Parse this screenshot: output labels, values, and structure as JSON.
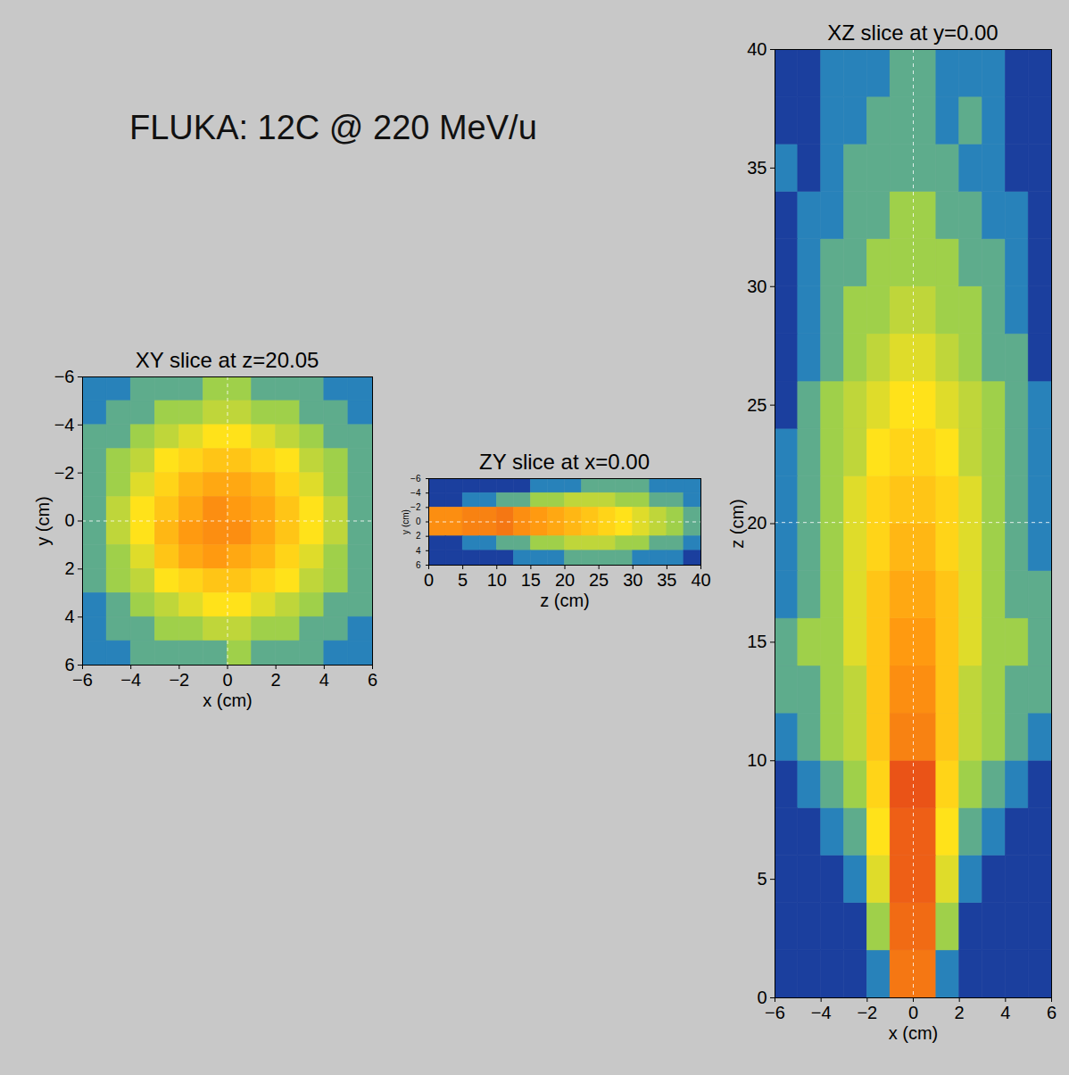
{
  "title": "FLUKA: 12C @ 220 MeV/u",
  "chart_data": [
    {
      "type": "heatmap",
      "title": "XY slice at z=20.05",
      "x_label": "x (cm)",
      "y_label": "y (cm)",
      "xlim": [
        -6,
        6
      ],
      "ylim": [
        6,
        -6
      ],
      "xticks": [
        -6,
        -4,
        -2,
        0,
        2,
        4,
        6
      ],
      "yticks": [
        -6,
        -4,
        -2,
        0,
        2,
        4,
        6
      ],
      "x_edges": [
        -6,
        -5,
        -4,
        -3,
        -2,
        -1,
        0,
        1,
        2,
        3,
        4,
        5,
        6
      ],
      "y_edges": [
        -6,
        -5,
        -4,
        -3,
        -2,
        -1,
        0,
        1,
        2,
        3,
        4,
        5,
        6
      ],
      "zlim": [
        0,
        1
      ],
      "crosshair": {
        "x": 0,
        "y": 0
      },
      "cells": [
        [
          0.05,
          0.05,
          0.1,
          0.1,
          0.1,
          0.15,
          0.15,
          0.1,
          0.1,
          0.1,
          0.05,
          0.05
        ],
        [
          0.05,
          0.1,
          0.1,
          0.15,
          0.15,
          0.2,
          0.2,
          0.15,
          0.15,
          0.1,
          0.1,
          0.05
        ],
        [
          0.1,
          0.1,
          0.15,
          0.2,
          0.25,
          0.3,
          0.3,
          0.25,
          0.2,
          0.15,
          0.1,
          0.1
        ],
        [
          0.1,
          0.15,
          0.2,
          0.3,
          0.35,
          0.4,
          0.4,
          0.35,
          0.3,
          0.2,
          0.15,
          0.1
        ],
        [
          0.1,
          0.15,
          0.25,
          0.35,
          0.45,
          0.5,
          0.5,
          0.45,
          0.35,
          0.25,
          0.15,
          0.1
        ],
        [
          0.1,
          0.2,
          0.3,
          0.4,
          0.5,
          0.6,
          0.55,
          0.5,
          0.4,
          0.3,
          0.2,
          0.1
        ],
        [
          0.1,
          0.2,
          0.3,
          0.45,
          0.55,
          0.6,
          0.6,
          0.5,
          0.4,
          0.3,
          0.2,
          0.1
        ],
        [
          0.1,
          0.15,
          0.25,
          0.4,
          0.5,
          0.55,
          0.5,
          0.45,
          0.35,
          0.25,
          0.15,
          0.1
        ],
        [
          0.1,
          0.15,
          0.2,
          0.3,
          0.35,
          0.4,
          0.4,
          0.35,
          0.3,
          0.2,
          0.15,
          0.1
        ],
        [
          0.05,
          0.1,
          0.15,
          0.2,
          0.25,
          0.3,
          0.3,
          0.25,
          0.2,
          0.15,
          0.1,
          0.1
        ],
        [
          0.05,
          0.1,
          0.1,
          0.15,
          0.15,
          0.2,
          0.2,
          0.15,
          0.15,
          0.1,
          0.1,
          0.05
        ],
        [
          0.05,
          0.05,
          0.1,
          0.1,
          0.1,
          0.1,
          0.15,
          0.1,
          0.1,
          0.1,
          0.05,
          0.05
        ]
      ]
    },
    {
      "type": "heatmap",
      "title": "ZY slice at x=0.00",
      "x_label": "z (cm)",
      "y_label": "y (cm)",
      "xlim": [
        0,
        40
      ],
      "ylim": [
        6,
        -6
      ],
      "xticks": [
        0,
        5,
        10,
        15,
        20,
        25,
        30,
        35,
        40
      ],
      "yticks": [
        -6,
        -4,
        -2,
        0,
        2,
        4,
        6
      ],
      "x_edges": [
        0,
        2.5,
        5,
        7.5,
        10,
        12.5,
        15,
        17.5,
        20,
        22.5,
        25,
        27.5,
        30,
        32.5,
        35,
        37.5,
        40
      ],
      "y_edges": [
        -6,
        -4,
        -2,
        0,
        2,
        4,
        6
      ],
      "zlim": [
        0,
        1
      ],
      "crosshair": {
        "y": 0
      },
      "cells": [
        [
          0,
          0,
          0,
          0,
          0,
          0,
          0.05,
          0.05,
          0.05,
          0.1,
          0.1,
          0.1,
          0.1,
          0.05,
          0.05,
          0.05
        ],
        [
          0,
          0,
          0.05,
          0.05,
          0.1,
          0.1,
          0.15,
          0.15,
          0.2,
          0.2,
          0.2,
          0.15,
          0.15,
          0.1,
          0.1,
          0.05
        ],
        [
          0.6,
          0.6,
          0.65,
          0.65,
          0.7,
          0.6,
          0.55,
          0.5,
          0.45,
          0.4,
          0.35,
          0.3,
          0.25,
          0.2,
          0.15,
          0.1
        ],
        [
          0.6,
          0.6,
          0.65,
          0.65,
          0.7,
          0.6,
          0.55,
          0.5,
          0.45,
          0.4,
          0.35,
          0.3,
          0.25,
          0.2,
          0.15,
          0.1
        ],
        [
          0,
          0,
          0.05,
          0.05,
          0.1,
          0.1,
          0.15,
          0.15,
          0.2,
          0.2,
          0.2,
          0.15,
          0.15,
          0.1,
          0.1,
          0.05
        ],
        [
          0,
          0,
          0,
          0,
          0,
          0.05,
          0.05,
          0.05,
          0.1,
          0.1,
          0.1,
          0.1,
          0.05,
          0.05,
          0.05,
          0
        ]
      ]
    },
    {
      "type": "heatmap",
      "title": "XZ slice at y=0.00",
      "x_label": "x (cm)",
      "y_label": "z (cm)",
      "xlim": [
        -6,
        6
      ],
      "ylim": [
        0,
        40
      ],
      "xticks": [
        -6,
        -4,
        -2,
        0,
        2,
        4,
        6
      ],
      "yticks": [
        0,
        5,
        10,
        15,
        20,
        25,
        30,
        35,
        40
      ],
      "x_edges": [
        -6,
        -5,
        -4,
        -3,
        -2,
        -1,
        0,
        1,
        2,
        3,
        4,
        5,
        6
      ],
      "y_edges": [
        0,
        2,
        4,
        6,
        8,
        10,
        12,
        14,
        16,
        18,
        20,
        22,
        24,
        26,
        28,
        30,
        32,
        34,
        36,
        38,
        40
      ],
      "zlim": [
        0,
        1
      ],
      "crosshair": {
        "x": 0,
        "y": 20.05
      },
      "cells": [
        [
          0,
          0,
          0,
          0,
          0.05,
          0.7,
          0.7,
          0.05,
          0,
          0,
          0,
          0
        ],
        [
          0,
          0,
          0,
          0,
          0.15,
          0.75,
          0.75,
          0.15,
          0,
          0,
          0,
          0
        ],
        [
          0,
          0,
          0,
          0.05,
          0.25,
          0.8,
          0.8,
          0.25,
          0.05,
          0,
          0,
          0
        ],
        [
          0,
          0,
          0.05,
          0.1,
          0.3,
          0.8,
          0.8,
          0.3,
          0.1,
          0.05,
          0,
          0
        ],
        [
          0,
          0.05,
          0.1,
          0.15,
          0.35,
          0.85,
          0.85,
          0.35,
          0.15,
          0.1,
          0.05,
          0
        ],
        [
          0.05,
          0.1,
          0.15,
          0.2,
          0.4,
          0.65,
          0.65,
          0.4,
          0.2,
          0.15,
          0.1,
          0.05
        ],
        [
          0.1,
          0.1,
          0.15,
          0.2,
          0.4,
          0.6,
          0.6,
          0.4,
          0.2,
          0.15,
          0.1,
          0.1
        ],
        [
          0.1,
          0.15,
          0.15,
          0.25,
          0.4,
          0.55,
          0.55,
          0.4,
          0.25,
          0.15,
          0.15,
          0.1
        ],
        [
          0.05,
          0.1,
          0.15,
          0.25,
          0.4,
          0.5,
          0.5,
          0.4,
          0.25,
          0.15,
          0.1,
          0.1
        ],
        [
          0.05,
          0.1,
          0.15,
          0.25,
          0.35,
          0.45,
          0.45,
          0.35,
          0.25,
          0.15,
          0.1,
          0.05
        ],
        [
          0.05,
          0.1,
          0.15,
          0.25,
          0.35,
          0.4,
          0.4,
          0.35,
          0.25,
          0.15,
          0.1,
          0.05
        ],
        [
          0.05,
          0.1,
          0.15,
          0.2,
          0.3,
          0.35,
          0.35,
          0.3,
          0.2,
          0.15,
          0.1,
          0.05
        ],
        [
          0,
          0.1,
          0.15,
          0.2,
          0.25,
          0.3,
          0.3,
          0.25,
          0.2,
          0.15,
          0.1,
          0.05
        ],
        [
          0,
          0.05,
          0.1,
          0.15,
          0.2,
          0.25,
          0.25,
          0.2,
          0.15,
          0.1,
          0.1,
          0
        ],
        [
          0,
          0.05,
          0.1,
          0.15,
          0.15,
          0.2,
          0.2,
          0.15,
          0.15,
          0.1,
          0.05,
          0
        ],
        [
          0,
          0.05,
          0.1,
          0.1,
          0.15,
          0.15,
          0.15,
          0.15,
          0.1,
          0.1,
          0.05,
          0
        ],
        [
          0,
          0.05,
          0.05,
          0.1,
          0.1,
          0.15,
          0.15,
          0.1,
          0.1,
          0.05,
          0.05,
          0
        ],
        [
          0.05,
          0,
          0.05,
          0.1,
          0.1,
          0.1,
          0.1,
          0.1,
          0.05,
          0.05,
          0,
          0
        ],
        [
          0,
          0,
          0.05,
          0.05,
          0.1,
          0.1,
          0.1,
          0.05,
          0.1,
          0.05,
          0,
          0
        ],
        [
          0,
          0,
          0.05,
          0.05,
          0.05,
          0.1,
          0.1,
          0.05,
          0.05,
          0.05,
          0,
          0
        ]
      ]
    }
  ]
}
